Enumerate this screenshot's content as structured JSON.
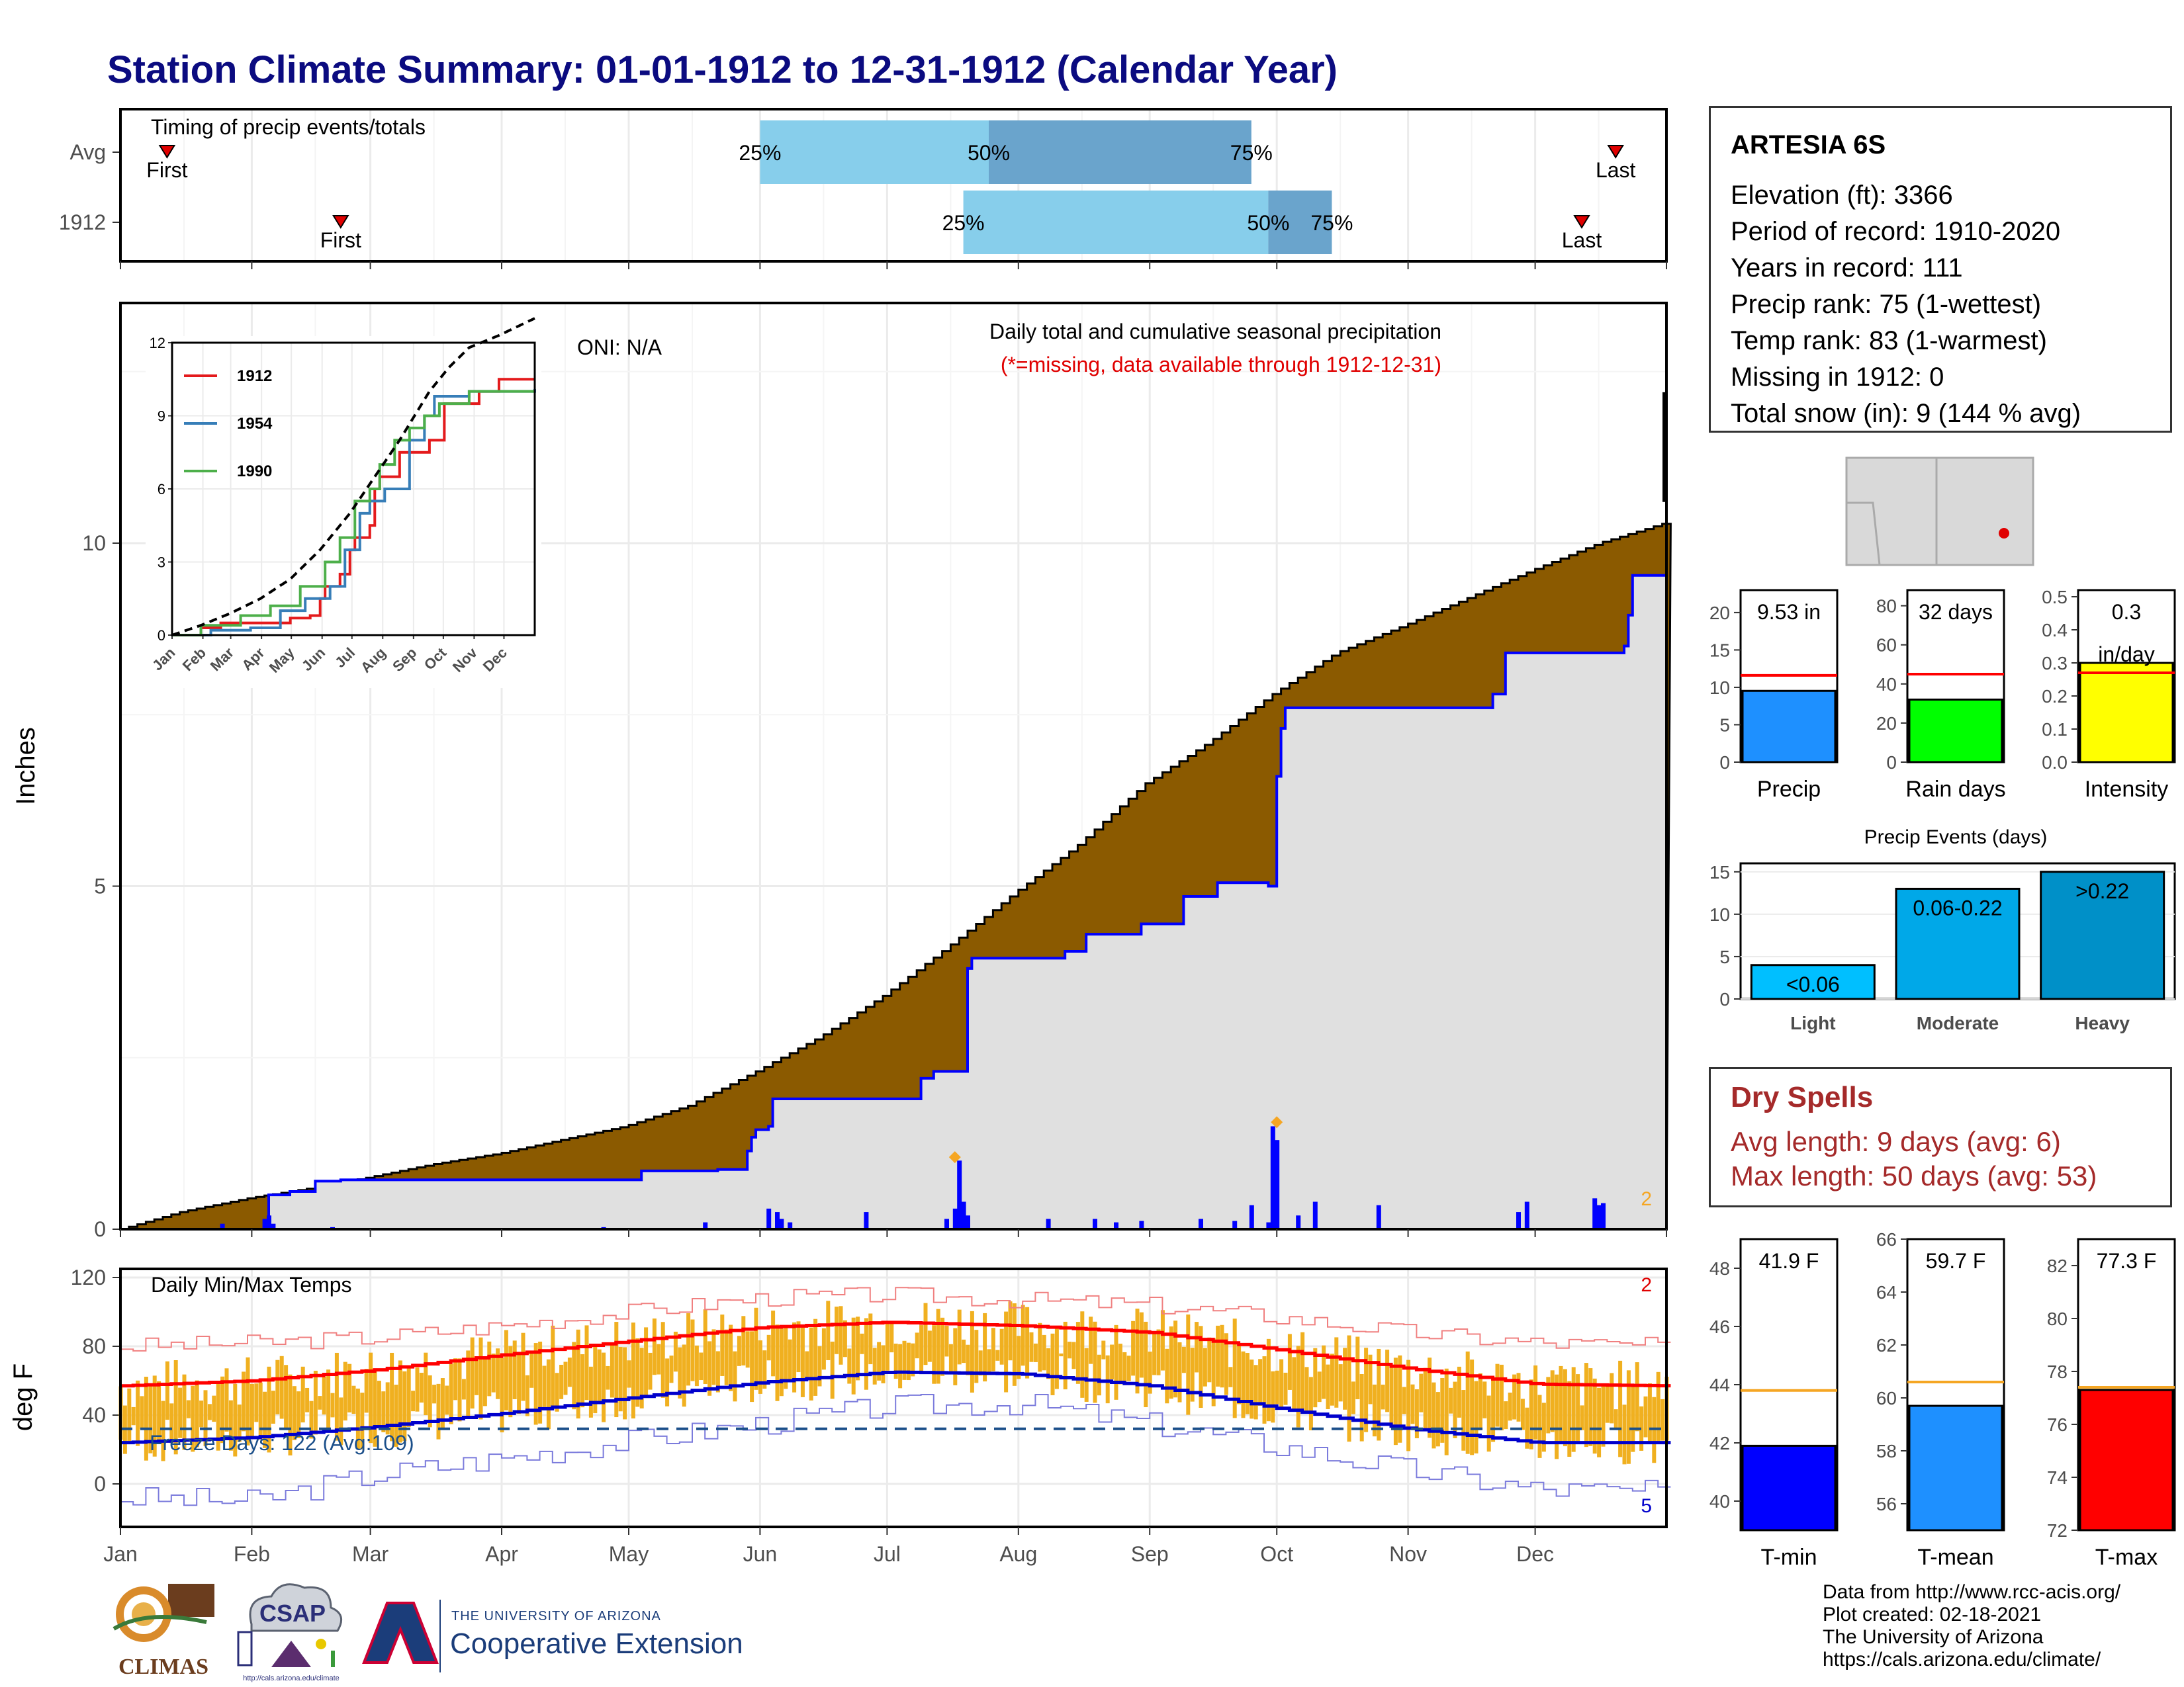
{
  "title": "Station Climate Summary: 01-01-1912 to 12-31-1912 (Calendar Year)",
  "station": {
    "name": "ARTESIA 6S",
    "lines": [
      "Elevation (ft): 3366",
      "Period of record: 1910-2020",
      "Years in record: 111",
      "Precip rank: 75 (1-wettest)",
      "Temp rank: 83 (1-warmest)",
      "Missing in 1912: 0",
      "Total snow (in): 9 (144 % avg)"
    ]
  },
  "dry_spells": {
    "heading": "Dry Spells",
    "avg_length": "Avg length: 9 days (avg: 6)",
    "max_length": "Max length: 50 days (avg: 53)"
  },
  "credits": [
    "Data from http://www.rcc-acis.org/",
    "Plot created: 02-18-2021",
    "The University of Arizona",
    "https://cals.arizona.edu/climate/"
  ],
  "logos": {
    "climas": "CLIMAS",
    "csap": "CSAP",
    "csap_url": "http://cals.arizona.edu/climate",
    "coop_small": "THE UNIVERSITY OF ARIZONA",
    "coop_big": "Cooperative Extension"
  },
  "colors": {
    "title": "#0b0b80",
    "cumulative_fill": "#8b5a00",
    "avg_fill": "#e0e0e0",
    "daily_bar": "#0000ff",
    "temp_bar": "#f0b020",
    "max_line": "#ff0000",
    "min_line": "#0000cc",
    "light_blue": "#87ceeb",
    "mid_blue": "#6aa4cc",
    "dry_text": "#a52a2a"
  },
  "chart_data": [
    {
      "id": "timing",
      "type": "bar",
      "title": "Timing of precip events/totals",
      "rows": [
        {
          "label": "Avg",
          "first": "Jan 12",
          "p25": "Jun 1",
          "p50": "Jul 25",
          "p75": "Sep 25",
          "last": "Dec 20"
        },
        {
          "label": "1912",
          "first": "Feb 22",
          "p25": "Jul 19",
          "p50": "Sep 29",
          "p75": "Oct 14",
          "last": "Dec 12"
        }
      ],
      "quantile_labels": [
        "25%",
        "50%",
        "75%"
      ],
      "marker_labels": [
        "First",
        "Last"
      ]
    },
    {
      "id": "precip",
      "type": "area",
      "title": "Daily total and cumulative seasonal precipitation",
      "subtitle": "(*=missing, data available through 1912-12-31)",
      "oni": "ONI: N/A",
      "ylabel": "Inches",
      "ylim": [
        0,
        13.5
      ],
      "yticks": [
        0,
        5,
        10
      ],
      "x_month_labels": [
        "Jan",
        "Feb",
        "Mar",
        "Apr",
        "May",
        "Jun",
        "Jul",
        "Aug",
        "Sep",
        "Oct",
        "Nov",
        "Dec"
      ],
      "corner_count": "2",
      "avg_cumulative": [
        [
          1,
          0
        ],
        [
          15,
          0.25
        ],
        [
          31,
          0.45
        ],
        [
          46,
          0.6
        ],
        [
          59,
          0.75
        ],
        [
          75,
          0.95
        ],
        [
          90,
          1.1
        ],
        [
          105,
          1.3
        ],
        [
          120,
          1.5
        ],
        [
          135,
          1.8
        ],
        [
          151,
          2.3
        ],
        [
          166,
          2.8
        ],
        [
          181,
          3.4
        ],
        [
          196,
          4.1
        ],
        [
          212,
          4.9
        ],
        [
          227,
          5.6
        ],
        [
          243,
          6.5
        ],
        [
          258,
          7.1
        ],
        [
          273,
          7.8
        ],
        [
          288,
          8.4
        ],
        [
          304,
          8.8
        ],
        [
          319,
          9.2
        ],
        [
          334,
          9.6
        ],
        [
          350,
          10.0
        ],
        [
          366,
          10.3
        ]
      ],
      "cumulative_1912": [
        [
          1,
          0
        ],
        [
          36,
          0.5
        ],
        [
          41,
          0.55
        ],
        [
          47,
          0.7
        ],
        [
          53,
          0.72
        ],
        [
          71,
          0.72
        ],
        [
          119,
          0.72
        ],
        [
          124,
          0.85
        ],
        [
          136,
          0.85
        ],
        [
          142,
          0.87
        ],
        [
          149,
          1.14
        ],
        [
          150,
          1.34
        ],
        [
          151,
          1.45
        ],
        [
          154,
          1.5
        ],
        [
          155,
          1.9
        ],
        [
          183,
          1.9
        ],
        [
          190,
          2.2
        ],
        [
          193,
          2.3
        ],
        [
          200,
          2.3
        ],
        [
          201,
          3.8
        ],
        [
          202,
          3.95
        ],
        [
          212,
          3.95
        ],
        [
          224,
          4.05
        ],
        [
          229,
          4.3
        ],
        [
          234,
          4.3
        ],
        [
          242,
          4.45
        ],
        [
          252,
          4.85
        ],
        [
          260,
          5.05
        ],
        [
          272,
          5.0
        ],
        [
          274,
          6.6
        ],
        [
          275,
          7.3
        ],
        [
          276,
          7.6
        ],
        [
          286,
          7.6
        ],
        [
          325,
          7.8
        ],
        [
          328,
          8.4
        ],
        [
          356,
          8.5
        ],
        [
          357,
          8.95
        ],
        [
          358,
          9.53
        ],
        [
          366,
          9.53
        ]
      ],
      "daily_bars": [
        [
          25,
          0.08
        ],
        [
          35,
          0.15
        ],
        [
          36,
          0.2
        ],
        [
          37,
          0.08
        ],
        [
          51,
          0.03
        ],
        [
          115,
          0.03
        ],
        [
          139,
          0.1
        ],
        [
          154,
          0.3
        ],
        [
          156,
          0.25
        ],
        [
          157,
          0.15
        ],
        [
          159,
          0.1
        ],
        [
          177,
          0.25
        ],
        [
          196,
          0.15
        ],
        [
          198,
          0.3
        ],
        [
          199,
          1.0
        ],
        [
          200,
          0.4
        ],
        [
          201,
          0.2
        ],
        [
          220,
          0.15
        ],
        [
          231,
          0.15
        ],
        [
          236,
          0.1
        ],
        [
          242,
          0.12
        ],
        [
          256,
          0.15
        ],
        [
          264,
          0.12
        ],
        [
          268,
          0.35
        ],
        [
          272,
          0.1
        ],
        [
          273,
          1.5
        ],
        [
          274,
          1.3
        ],
        [
          279,
          0.2
        ],
        [
          283,
          0.4
        ],
        [
          298,
          0.35
        ],
        [
          331,
          0.25
        ],
        [
          333,
          0.4
        ],
        [
          349,
          0.45
        ],
        [
          350,
          0.35
        ],
        [
          351,
          0.38
        ]
      ],
      "orange_markers": [
        [
          198,
          1.05
        ],
        [
          274,
          1.56
        ]
      ],
      "inset": {
        "type": "line",
        "ylim": [
          0,
          12
        ],
        "yticks": [
          0,
          3,
          6,
          9,
          12
        ],
        "x_month_labels": [
          "Jan",
          "Feb",
          "Mar",
          "Apr",
          "May",
          "Jun",
          "Jul",
          "Aug",
          "Sep",
          "Oct",
          "Nov",
          "Dec"
        ],
        "series": [
          {
            "name": "1912",
            "color": "#e41a1c",
            "points": [
              [
                1,
                0
              ],
              [
                30,
                0.3
              ],
              [
                50,
                0.5
              ],
              [
                60,
                0.5
              ],
              [
                120,
                0.7
              ],
              [
                140,
                0.8
              ],
              [
                150,
                1.5
              ],
              [
                155,
                2.0
              ],
              [
                170,
                2.5
              ],
              [
                180,
                3.5
              ],
              [
                185,
                4.0
              ],
              [
                200,
                4.5
              ],
              [
                205,
                6.0
              ],
              [
                210,
                6.5
              ],
              [
                230,
                7.5
              ],
              [
                260,
                8.0
              ],
              [
                275,
                9.5
              ],
              [
                290,
                9.5
              ],
              [
                310,
                10.0
              ],
              [
                330,
                10.5
              ],
              [
                366,
                10.5
              ]
            ]
          },
          {
            "name": "1954",
            "color": "#377eb8",
            "points": [
              [
                1,
                0
              ],
              [
                40,
                0.2
              ],
              [
                80,
                0.3
              ],
              [
                110,
                1.0
              ],
              [
                135,
                1.5
              ],
              [
                160,
                2.0
              ],
              [
                175,
                3.5
              ],
              [
                190,
                5.0
              ],
              [
                200,
                5.5
              ],
              [
                215,
                6.0
              ],
              [
                240,
                8.0
              ],
              [
                255,
                9.0
              ],
              [
                265,
                9.8
              ],
              [
                300,
                10.0
              ],
              [
                366,
                10.1
              ]
            ]
          },
          {
            "name": "1990",
            "color": "#4daf4a",
            "points": [
              [
                1,
                0
              ],
              [
                30,
                0.4
              ],
              [
                70,
                0.8
              ],
              [
                100,
                1.2
              ],
              [
                130,
                2.0
              ],
              [
                155,
                3.0
              ],
              [
                170,
                4.0
              ],
              [
                185,
                5.5
              ],
              [
                200,
                6.0
              ],
              [
                210,
                7.0
              ],
              [
                225,
                8.0
              ],
              [
                240,
                8.5
              ],
              [
                255,
                9.0
              ],
              [
                270,
                9.5
              ],
              [
                300,
                10.0
              ],
              [
                366,
                10.0
              ]
            ]
          },
          {
            "name": "",
            "color": "#000000",
            "dashed": true,
            "points": [
              [
                1,
                0
              ],
              [
                30,
                0.4
              ],
              [
                60,
                0.9
              ],
              [
                90,
                1.5
              ],
              [
                120,
                2.3
              ],
              [
                150,
                3.5
              ],
              [
                180,
                5.0
              ],
              [
                210,
                6.8
              ],
              [
                230,
                8.0
              ],
              [
                245,
                9.0
              ],
              [
                260,
                10.0
              ],
              [
                280,
                11.0
              ],
              [
                300,
                11.8
              ],
              [
                330,
                12.3
              ],
              [
                366,
                13.0
              ]
            ]
          }
        ]
      }
    },
    {
      "id": "temps",
      "type": "area",
      "title": "Daily Min/Max Temps",
      "ylabel": "deg F",
      "ylim": [
        -25,
        125
      ],
      "yticks": [
        0,
        40,
        80,
        120
      ],
      "freeze_label": "Freeze Days: 122 (Avg:109)",
      "freeze_line": 32,
      "corner_max": "2",
      "corner_min": "5",
      "x_month_labels": [
        "Jan",
        "Feb",
        "Mar",
        "Apr",
        "May",
        "Jun",
        "Jul",
        "Aug",
        "Sep",
        "Oct",
        "Nov",
        "Dec"
      ],
      "normal_max": [
        [
          1,
          57
        ],
        [
          32,
          60
        ],
        [
          60,
          66
        ],
        [
          91,
          75
        ],
        [
          121,
          83
        ],
        [
          152,
          91
        ],
        [
          182,
          94
        ],
        [
          213,
          92
        ],
        [
          244,
          88
        ],
        [
          274,
          78
        ],
        [
          305,
          67
        ],
        [
          335,
          58
        ],
        [
          366,
          57
        ]
      ],
      "normal_min": [
        [
          1,
          24
        ],
        [
          32,
          27
        ],
        [
          60,
          33
        ],
        [
          91,
          41
        ],
        [
          121,
          50
        ],
        [
          152,
          59
        ],
        [
          182,
          65
        ],
        [
          213,
          64
        ],
        [
          244,
          57
        ],
        [
          274,
          44
        ],
        [
          305,
          32
        ],
        [
          335,
          24
        ],
        [
          366,
          24
        ]
      ],
      "record_max": [
        [
          1,
          80
        ],
        [
          32,
          82
        ],
        [
          60,
          85
        ],
        [
          91,
          92
        ],
        [
          121,
          100
        ],
        [
          152,
          108
        ],
        [
          182,
          110
        ],
        [
          213,
          107
        ],
        [
          244,
          104
        ],
        [
          274,
          97
        ],
        [
          305,
          88
        ],
        [
          335,
          82
        ],
        [
          366,
          80
        ]
      ],
      "record_min": [
        [
          1,
          -8
        ],
        [
          32,
          -10
        ],
        [
          60,
          5
        ],
        [
          91,
          15
        ],
        [
          121,
          25
        ],
        [
          152,
          35
        ],
        [
          182,
          45
        ],
        [
          213,
          47
        ],
        [
          244,
          35
        ],
        [
          274,
          22
        ],
        [
          305,
          8
        ],
        [
          335,
          -3
        ],
        [
          366,
          -5
        ]
      ]
    },
    {
      "id": "precip-summary",
      "type": "bar",
      "categories": [
        "Precip",
        "Rain days",
        "Intensity"
      ],
      "values": [
        9.53,
        32,
        0.3
      ],
      "averages": [
        11.6,
        45,
        0.27
      ],
      "labels": [
        "9.53 in",
        "32 days",
        "0.3"
      ],
      "intensity_unit": "in/day",
      "ylims": [
        [
          0,
          23
        ],
        [
          0,
          88
        ],
        [
          0,
          0.52
        ]
      ],
      "yticks": [
        [
          0,
          5,
          10,
          15,
          20
        ],
        [
          0,
          20,
          40,
          60,
          80
        ],
        [
          0.0,
          0.1,
          0.2,
          0.3,
          0.4,
          0.5
        ]
      ],
      "colors": [
        "#1e90ff",
        "#00ff00",
        "#ffff00"
      ]
    },
    {
      "id": "precip-events",
      "type": "bar",
      "title": "Precip Events (days)",
      "categories": [
        "Light",
        "Moderate",
        "Heavy"
      ],
      "values": [
        4,
        13,
        15
      ],
      "bar_labels": [
        "<0.06",
        "0.06-0.22",
        ">0.22"
      ],
      "ylim": [
        0,
        16
      ],
      "yticks": [
        0,
        5,
        10,
        15
      ],
      "colors": [
        "#00bfff",
        "#00a8e8",
        "#0090c8"
      ]
    },
    {
      "id": "temp-summary",
      "type": "bar",
      "categories": [
        "T-min",
        "T-mean",
        "T-max"
      ],
      "values": [
        41.9,
        59.7,
        77.3
      ],
      "averages": [
        43.8,
        60.6,
        77.4
      ],
      "labels": [
        "41.9 F",
        "59.7 F",
        "77.3 F"
      ],
      "ylims": [
        [
          39,
          49
        ],
        [
          55,
          66
        ],
        [
          72,
          83
        ]
      ],
      "yticks": [
        [
          40,
          42,
          44,
          46,
          48
        ],
        [
          56,
          58,
          60,
          62,
          64,
          66
        ],
        [
          72,
          74,
          76,
          78,
          80,
          82
        ]
      ],
      "colors": [
        "#0000ff",
        "#1e90ff",
        "#ff0000"
      ]
    }
  ]
}
